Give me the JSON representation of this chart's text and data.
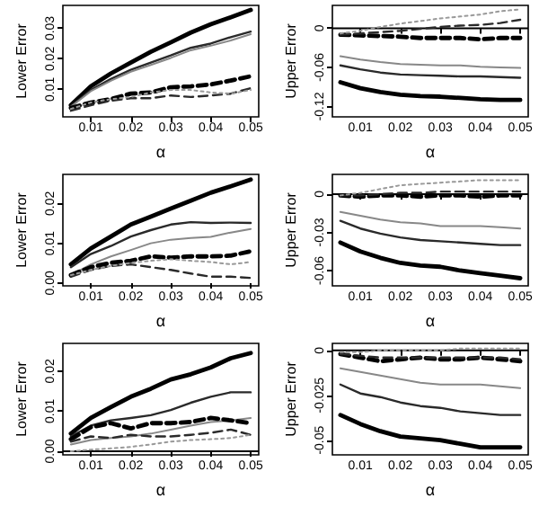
{
  "chart_data": [
    {
      "type": "line",
      "xlabel": "α",
      "ylabel": "Lower Error",
      "x": [
        0.005,
        0.01,
        0.015,
        0.02,
        0.025,
        0.03,
        0.035,
        0.04,
        0.045,
        0.05
      ],
      "xlim": [
        0.003,
        0.052
      ],
      "xticks": [
        0.01,
        0.02,
        0.03,
        0.04,
        0.05
      ],
      "ylim": [
        0.001,
        0.0375
      ],
      "yticks": [
        0.01,
        0.02,
        0.03
      ],
      "series": [
        {
          "color": "#000000",
          "line_style": "solid",
          "values": [
            0.0048,
            0.011,
            0.0152,
            0.0188,
            0.0223,
            0.0254,
            0.0286,
            0.0313,
            0.0336,
            0.036
          ]
        },
        {
          "color": "#2a2a2a",
          "line_style": "solid",
          "values": [
            0.0045,
            0.0098,
            0.0134,
            0.0164,
            0.0188,
            0.0211,
            0.0236,
            0.025,
            0.0271,
            0.0289
          ]
        },
        {
          "color": "#888888",
          "line_style": "solid",
          "values": [
            0.0043,
            0.0094,
            0.0128,
            0.0158,
            0.018,
            0.0203,
            0.0228,
            0.0243,
            0.026,
            0.0281
          ]
        },
        {
          "color": "#000000",
          "line_style": "dashed",
          "values": [
            0.0039,
            0.0057,
            0.0068,
            0.0086,
            0.009,
            0.0107,
            0.011,
            0.0116,
            0.0129,
            0.0143
          ]
        },
        {
          "color": "#2a2a2a",
          "line_style": "dashed",
          "values": [
            0.003,
            0.0048,
            0.0063,
            0.0071,
            0.0071,
            0.008,
            0.0075,
            0.008,
            0.0086,
            0.0104
          ]
        },
        {
          "color": "#999999",
          "line_style": "dotted",
          "values": [
            0.0036,
            0.0057,
            0.0068,
            0.0075,
            0.009,
            0.0098,
            0.0098,
            0.009,
            0.0086,
            0.0098
          ]
        }
      ]
    },
    {
      "type": "line",
      "xlabel": "α",
      "ylabel": "Upper Error",
      "x": [
        0.005,
        0.01,
        0.015,
        0.02,
        0.025,
        0.03,
        0.035,
        0.04,
        0.045,
        0.05
      ],
      "xlim": [
        0.003,
        0.052
      ],
      "xticks": [
        0.01,
        0.02,
        0.03,
        0.04,
        0.05
      ],
      "ylim": [
        -0.136,
        0.035
      ],
      "yticks": [
        -0.12,
        -0.06,
        0
      ],
      "ref_lines": [
        {
          "axis": "y",
          "value": 0,
          "color": "#000000"
        }
      ],
      "series": [
        {
          "color": "#000000",
          "line_style": "solid",
          "values": [
            -0.083,
            -0.092,
            -0.098,
            -0.102,
            -0.104,
            -0.105,
            -0.107,
            -0.109,
            -0.11,
            -0.11
          ]
        },
        {
          "color": "#2a2a2a",
          "line_style": "solid",
          "values": [
            -0.057,
            -0.063,
            -0.068,
            -0.071,
            -0.072,
            -0.073,
            -0.074,
            -0.074,
            -0.075,
            -0.076
          ]
        },
        {
          "color": "#888888",
          "line_style": "solid",
          "values": [
            -0.043,
            -0.048,
            -0.052,
            -0.055,
            -0.056,
            -0.057,
            -0.057,
            -0.059,
            -0.06,
            -0.061
          ]
        },
        {
          "color": "#000000",
          "line_style": "dashed",
          "values": [
            -0.01,
            -0.011,
            -0.012,
            -0.013,
            -0.015,
            -0.015,
            -0.015,
            -0.017,
            -0.015,
            -0.015
          ]
        },
        {
          "color": "#2a2a2a",
          "line_style": "dashed",
          "values": [
            -0.01,
            -0.008,
            -0.006,
            -0.004,
            -0.001,
            0.002,
            0.004,
            0.005,
            0.008,
            0.013
          ]
        },
        {
          "color": "#999999",
          "line_style": "dotted",
          "values": [
            -0.008,
            -0.004,
            0.002,
            0.007,
            0.011,
            0.015,
            0.018,
            0.021,
            0.026,
            0.029
          ]
        }
      ]
    },
    {
      "type": "line",
      "xlabel": "α",
      "ylabel": "Lower Error",
      "x": [
        0.005,
        0.01,
        0.015,
        0.02,
        0.025,
        0.03,
        0.035,
        0.04,
        0.045,
        0.05
      ],
      "xlim": [
        0.003,
        0.052
      ],
      "xticks": [
        0.01,
        0.02,
        0.03,
        0.04,
        0.05
      ],
      "ylim": [
        -0.0007,
        0.0273
      ],
      "yticks": [
        {
          "value": 0,
          "label": "0.00"
        },
        0.01,
        0.02
      ],
      "series": [
        {
          "color": "#000000",
          "line_style": "solid",
          "values": [
            0.0047,
            0.0087,
            0.0117,
            0.0147,
            0.0167,
            0.0187,
            0.0207,
            0.0227,
            0.0243,
            0.026
          ]
        },
        {
          "color": "#2a2a2a",
          "line_style": "solid",
          "values": [
            0.004,
            0.0073,
            0.0093,
            0.0117,
            0.0133,
            0.0147,
            0.0153,
            0.0151,
            0.0152,
            0.0151
          ]
        },
        {
          "color": "#888888",
          "line_style": "solid",
          "values": [
            0.002,
            0.0047,
            0.0067,
            0.0083,
            0.01,
            0.0109,
            0.0113,
            0.0116,
            0.0127,
            0.0136
          ]
        },
        {
          "color": "#000000",
          "line_style": "dashed",
          "values": [
            0.002,
            0.004,
            0.0051,
            0.0056,
            0.0067,
            0.0064,
            0.0067,
            0.0067,
            0.0069,
            0.008
          ]
        },
        {
          "color": "#2a2a2a",
          "line_style": "dashed",
          "values": [
            0.0016,
            0.0033,
            0.0043,
            0.0047,
            0.004,
            0.0033,
            0.0024,
            0.0016,
            0.0016,
            0.0013
          ]
        },
        {
          "color": "#999999",
          "line_style": "dotted",
          "values": [
            0.002,
            0.0033,
            0.0043,
            0.0051,
            0.0056,
            0.006,
            0.0056,
            0.0053,
            0.0047,
            0.0053
          ]
        }
      ]
    },
    {
      "type": "line",
      "xlabel": "α",
      "ylabel": "Upper Error",
      "x": [
        0.005,
        0.01,
        0.015,
        0.02,
        0.025,
        0.03,
        0.035,
        0.04,
        0.045,
        0.05
      ],
      "xlim": [
        0.003,
        0.052
      ],
      "xticks": [
        0.01,
        0.02,
        0.03,
        0.04,
        0.05
      ],
      "ylim": [
        -0.072,
        0.0155
      ],
      "yticks": [
        -0.06,
        -0.03,
        0
      ],
      "ref_lines": [
        {
          "axis": "y",
          "value": 0,
          "color": "#000000"
        }
      ],
      "series": [
        {
          "color": "#000000",
          "line_style": "solid",
          "values": [
            -0.038,
            -0.045,
            -0.05,
            -0.054,
            -0.056,
            -0.057,
            -0.06,
            -0.062,
            -0.064,
            -0.066
          ]
        },
        {
          "color": "#2a2a2a",
          "line_style": "solid",
          "values": [
            -0.021,
            -0.027,
            -0.031,
            -0.034,
            -0.036,
            -0.037,
            -0.038,
            -0.039,
            -0.04,
            -0.04
          ]
        },
        {
          "color": "#888888",
          "line_style": "solid",
          "values": [
            -0.014,
            -0.017,
            -0.02,
            -0.022,
            -0.023,
            -0.025,
            -0.025,
            -0.025,
            -0.026,
            -0.027
          ]
        },
        {
          "color": "#000000",
          "line_style": "dashed",
          "values": [
            -0.001,
            -0.002,
            -0.001,
            -0.001,
            -0.002,
            -0.001,
            -0.001,
            -0.002,
            -0.001,
            -0.001
          ]
        },
        {
          "color": "#2a2a2a",
          "line_style": "dashed",
          "values": [
            -0.001,
            -0.001,
            0,
            0.001,
            0.001,
            0.002,
            0.002,
            0.002,
            0.002,
            0.002
          ]
        },
        {
          "color": "#999999",
          "line_style": "dotted",
          "values": [
            -0.001,
            0.001,
            0.004,
            0.007,
            0.008,
            0.009,
            0.01,
            0.011,
            0.011,
            0.011
          ]
        }
      ]
    },
    {
      "type": "line",
      "xlabel": "α",
      "ylabel": "Lower Error",
      "x": [
        0.005,
        0.01,
        0.015,
        0.02,
        0.025,
        0.03,
        0.035,
        0.04,
        0.045,
        0.05
      ],
      "xlim": [
        0.003,
        0.052
      ],
      "xticks": [
        0.01,
        0.02,
        0.03,
        0.04,
        0.05
      ],
      "ylim": [
        -0.0009,
        0.0269
      ],
      "yticks": [
        {
          "value": 0,
          "label": "0.00"
        },
        0.01,
        0.02
      ],
      "ref_lines": [
        {
          "axis": "y",
          "value": 0,
          "color": "#000000"
        }
      ],
      "series": [
        {
          "color": "#000000",
          "line_style": "solid",
          "values": [
            0.0044,
            0.0083,
            0.011,
            0.0136,
            0.0156,
            0.0179,
            0.0192,
            0.0209,
            0.0232,
            0.0245
          ]
        },
        {
          "color": "#2a2a2a",
          "line_style": "solid",
          "values": [
            0.0037,
            0.0064,
            0.0077,
            0.0083,
            0.009,
            0.0103,
            0.0121,
            0.0136,
            0.0147,
            0.0147
          ]
        },
        {
          "color": "#888888",
          "line_style": "solid",
          "values": [
            0.0017,
            0.0028,
            0.0033,
            0.0037,
            0.0044,
            0.0054,
            0.0064,
            0.0073,
            0.0077,
            0.0083
          ]
        },
        {
          "color": "#000000",
          "line_style": "dashed",
          "values": [
            0.003,
            0.006,
            0.007,
            0.0057,
            0.007,
            0.007,
            0.0073,
            0.0083,
            0.0077,
            0.007
          ]
        },
        {
          "color": "#2a2a2a",
          "line_style": "dashed",
          "values": [
            0.0024,
            0.0037,
            0.0033,
            0.0041,
            0.0037,
            0.0037,
            0.0041,
            0.0046,
            0.0054,
            0.0041
          ]
        },
        {
          "color": "#999999",
          "line_style": "dotted",
          "values": [
            0,
            0.0004,
            0.0007,
            0.0011,
            0.0017,
            0.0024,
            0.0028,
            0.003,
            0.0033,
            0.0041
          ]
        }
      ]
    },
    {
      "type": "line",
      "xlabel": "α",
      "ylabel": "Upper Error",
      "x": [
        0.005,
        0.01,
        0.015,
        0.02,
        0.025,
        0.03,
        0.035,
        0.04,
        0.045,
        0.05
      ],
      "xlim": [
        0.003,
        0.052
      ],
      "xticks": [
        0.01,
        0.02,
        0.03,
        0.04,
        0.05
      ],
      "ylim": [
        -0.0582,
        0.0039
      ],
      "yticks": [
        -0.05,
        -0.025,
        0
      ],
      "ref_lines": [
        {
          "axis": "y",
          "value": 0,
          "color": "#000000"
        }
      ],
      "series": [
        {
          "color": "#000000",
          "line_style": "solid",
          "values": [
            -0.036,
            -0.041,
            -0.045,
            -0.048,
            -0.049,
            -0.05,
            -0.052,
            -0.054,
            -0.054,
            -0.054
          ]
        },
        {
          "color": "#2a2a2a",
          "line_style": "solid",
          "values": [
            -0.019,
            -0.024,
            -0.026,
            -0.029,
            -0.031,
            -0.032,
            -0.034,
            -0.035,
            -0.036,
            -0.036
          ]
        },
        {
          "color": "#888888",
          "line_style": "solid",
          "values": [
            -0.01,
            -0.012,
            -0.014,
            -0.016,
            -0.018,
            -0.019,
            -0.019,
            -0.019,
            -0.02,
            -0.021
          ]
        },
        {
          "color": "#000000",
          "line_style": "dashed",
          "values": [
            -0.002,
            -0.004,
            -0.006,
            -0.005,
            -0.004,
            -0.005,
            -0.005,
            -0.004,
            -0.005,
            -0.006
          ]
        },
        {
          "color": "#2a2a2a",
          "line_style": "dashed",
          "values": [
            -0.002,
            -0.003,
            -0.004,
            -0.004,
            -0.004,
            -0.004,
            -0.004,
            -0.004,
            -0.004,
            -0.005
          ]
        },
        {
          "color": "#999999",
          "line_style": "dotted",
          "values": [
            -0.001,
            -0.001,
            0,
            0,
            0,
            0,
            0.001,
            0.001,
            0.001,
            0.001
          ]
        }
      ]
    }
  ]
}
